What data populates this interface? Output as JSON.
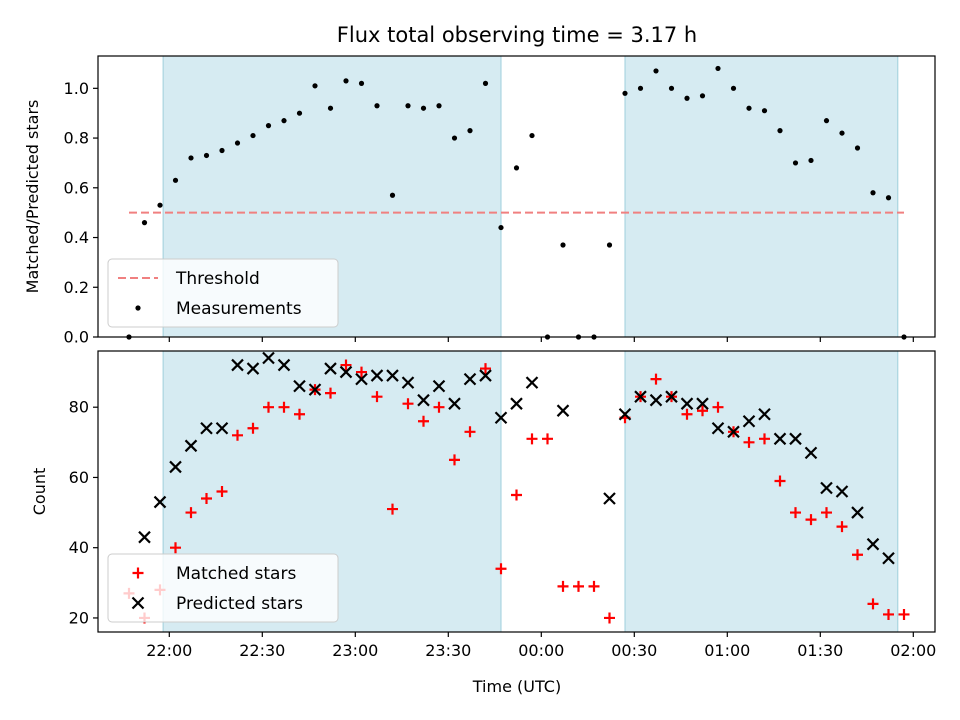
{
  "chart_data": [
    {
      "type": "scatter",
      "title": "Flux total observing time = 3.17 h",
      "xlabel": "",
      "ylabel": "Matched/Predicted stars",
      "ylim": [
        0,
        1.13
      ],
      "yticks": [
        "0.0",
        "0.2",
        "0.4",
        "0.6",
        "0.8",
        "1.0"
      ],
      "ytick_values": [
        0,
        0.2,
        0.4,
        0.6,
        0.8,
        1.0
      ],
      "legend_location": "lower-left",
      "legend": [
        "Threshold",
        "Measurements"
      ],
      "shaded_intervals": [
        [
          "21:58",
          "23:47"
        ],
        [
          "00:27",
          "01:55"
        ]
      ],
      "threshold": {
        "name": "Threshold",
        "value": 0.5,
        "x_range": [
          "21:47",
          "01:57"
        ],
        "color": "#f08080"
      },
      "series": [
        {
          "name": "Measurements",
          "color": "#000000",
          "points": [
            [
              "21:47",
              0.0
            ],
            [
              "21:52",
              0.46
            ],
            [
              "21:57",
              0.53
            ],
            [
              "22:02",
              0.63
            ],
            [
              "22:07",
              0.72
            ],
            [
              "22:12",
              0.73
            ],
            [
              "22:17",
              0.75
            ],
            [
              "22:22",
              0.78
            ],
            [
              "22:27",
              0.81
            ],
            [
              "22:32",
              0.85
            ],
            [
              "22:37",
              0.87
            ],
            [
              "22:42",
              0.9
            ],
            [
              "22:47",
              1.01
            ],
            [
              "22:52",
              0.92
            ],
            [
              "22:57",
              1.03
            ],
            [
              "23:02",
              1.02
            ],
            [
              "23:07",
              0.93
            ],
            [
              "23:12",
              0.57
            ],
            [
              "23:17",
              0.93
            ],
            [
              "23:22",
              0.92
            ],
            [
              "23:27",
              0.93
            ],
            [
              "23:32",
              0.8
            ],
            [
              "23:37",
              0.83
            ],
            [
              "23:42",
              1.02
            ],
            [
              "23:47",
              0.44
            ],
            [
              "23:52",
              0.68
            ],
            [
              "23:57",
              0.81
            ],
            [
              "00:02",
              0.0
            ],
            [
              "00:07",
              0.37
            ],
            [
              "00:12",
              0.0
            ],
            [
              "00:17",
              0.0
            ],
            [
              "00:22",
              0.37
            ],
            [
              "00:27",
              0.98
            ],
            [
              "00:32",
              1.0
            ],
            [
              "00:37",
              1.07
            ],
            [
              "00:42",
              1.0
            ],
            [
              "00:47",
              0.96
            ],
            [
              "00:52",
              0.97
            ],
            [
              "00:57",
              1.08
            ],
            [
              "01:02",
              1.0
            ],
            [
              "01:07",
              0.92
            ],
            [
              "01:12",
              0.91
            ],
            [
              "01:17",
              0.83
            ],
            [
              "01:22",
              0.7
            ],
            [
              "01:27",
              0.71
            ],
            [
              "01:32",
              0.87
            ],
            [
              "01:37",
              0.82
            ],
            [
              "01:42",
              0.76
            ],
            [
              "01:47",
              0.58
            ],
            [
              "01:52",
              0.56
            ],
            [
              "01:57",
              0.0
            ]
          ]
        }
      ]
    },
    {
      "type": "scatter",
      "title": "",
      "xlabel": "Time (UTC)",
      "ylabel": "Count",
      "ylim": [
        16,
        96
      ],
      "yticks": [
        "20",
        "40",
        "60",
        "80"
      ],
      "ytick_values": [
        20,
        40,
        60,
        80
      ],
      "xlim": [
        "21:37",
        "02:07"
      ],
      "xticks": [
        "22:00",
        "22:30",
        "23:00",
        "23:30",
        "00:00",
        "00:30",
        "01:00",
        "01:30",
        "02:00"
      ],
      "legend_location": "lower-left",
      "legend": [
        "Matched stars",
        "Predicted stars"
      ],
      "shaded_intervals": [
        [
          "21:58",
          "23:47"
        ],
        [
          "00:27",
          "01:55"
        ]
      ],
      "series": [
        {
          "name": "Matched stars",
          "marker": "plus",
          "color": "#ff0000",
          "points": [
            [
              "21:47",
              27
            ],
            [
              "21:52",
              20
            ],
            [
              "21:57",
              28
            ],
            [
              "22:02",
              40
            ],
            [
              "22:07",
              50
            ],
            [
              "22:12",
              54
            ],
            [
              "22:17",
              56
            ],
            [
              "22:22",
              72
            ],
            [
              "22:27",
              74
            ],
            [
              "22:32",
              80
            ],
            [
              "22:37",
              80
            ],
            [
              "22:42",
              78
            ],
            [
              "22:47",
              85
            ],
            [
              "22:52",
              84
            ],
            [
              "22:57",
              92
            ],
            [
              "23:02",
              90
            ],
            [
              "23:07",
              83
            ],
            [
              "23:12",
              51
            ],
            [
              "23:17",
              81
            ],
            [
              "23:22",
              76
            ],
            [
              "23:27",
              80
            ],
            [
              "23:32",
              65
            ],
            [
              "23:37",
              73
            ],
            [
              "23:42",
              91
            ],
            [
              "23:47",
              34
            ],
            [
              "23:52",
              55
            ],
            [
              "23:57",
              71
            ],
            [
              "00:02",
              71
            ],
            [
              "00:07",
              29
            ],
            [
              "00:12",
              29
            ],
            [
              "00:17",
              29
            ],
            [
              "00:22",
              20
            ],
            [
              "00:27",
              77
            ],
            [
              "00:32",
              83
            ],
            [
              "00:37",
              88
            ],
            [
              "00:42",
              83
            ],
            [
              "00:47",
              78
            ],
            [
              "00:52",
              79
            ],
            [
              "00:57",
              80
            ],
            [
              "01:02",
              73
            ],
            [
              "01:07",
              70
            ],
            [
              "01:12",
              71
            ],
            [
              "01:17",
              59
            ],
            [
              "01:22",
              50
            ],
            [
              "01:27",
              48
            ],
            [
              "01:32",
              50
            ],
            [
              "01:37",
              46
            ],
            [
              "01:42",
              38
            ],
            [
              "01:47",
              24
            ],
            [
              "01:52",
              21
            ],
            [
              "01:57",
              21
            ]
          ]
        },
        {
          "name": "Predicted stars",
          "marker": "x",
          "color": "#000000",
          "points": [
            [
              "21:52",
              43
            ],
            [
              "21:57",
              53
            ],
            [
              "22:02",
              63
            ],
            [
              "22:07",
              69
            ],
            [
              "22:12",
              74
            ],
            [
              "22:17",
              74
            ],
            [
              "22:22",
              92
            ],
            [
              "22:27",
              91
            ],
            [
              "22:32",
              94
            ],
            [
              "22:37",
              92
            ],
            [
              "22:42",
              86
            ],
            [
              "22:47",
              85
            ],
            [
              "22:52",
              91
            ],
            [
              "22:57",
              90
            ],
            [
              "23:02",
              88
            ],
            [
              "23:07",
              89
            ],
            [
              "23:12",
              89
            ],
            [
              "23:17",
              87
            ],
            [
              "23:22",
              82
            ],
            [
              "23:27",
              86
            ],
            [
              "23:32",
              81
            ],
            [
              "23:37",
              88
            ],
            [
              "23:42",
              89
            ],
            [
              "23:47",
              77
            ],
            [
              "23:52",
              81
            ],
            [
              "23:57",
              87
            ],
            [
              "00:07",
              79
            ],
            [
              "00:22",
              54
            ],
            [
              "00:27",
              78
            ],
            [
              "00:32",
              83
            ],
            [
              "00:37",
              82
            ],
            [
              "00:42",
              83
            ],
            [
              "00:47",
              81
            ],
            [
              "00:52",
              81
            ],
            [
              "00:57",
              74
            ],
            [
              "01:02",
              73
            ],
            [
              "01:07",
              76
            ],
            [
              "01:12",
              78
            ],
            [
              "01:17",
              71
            ],
            [
              "01:22",
              71
            ],
            [
              "01:27",
              67
            ],
            [
              "01:32",
              57
            ],
            [
              "01:37",
              56
            ],
            [
              "01:42",
              50
            ],
            [
              "01:47",
              41
            ],
            [
              "01:52",
              37
            ]
          ]
        }
      ]
    }
  ]
}
